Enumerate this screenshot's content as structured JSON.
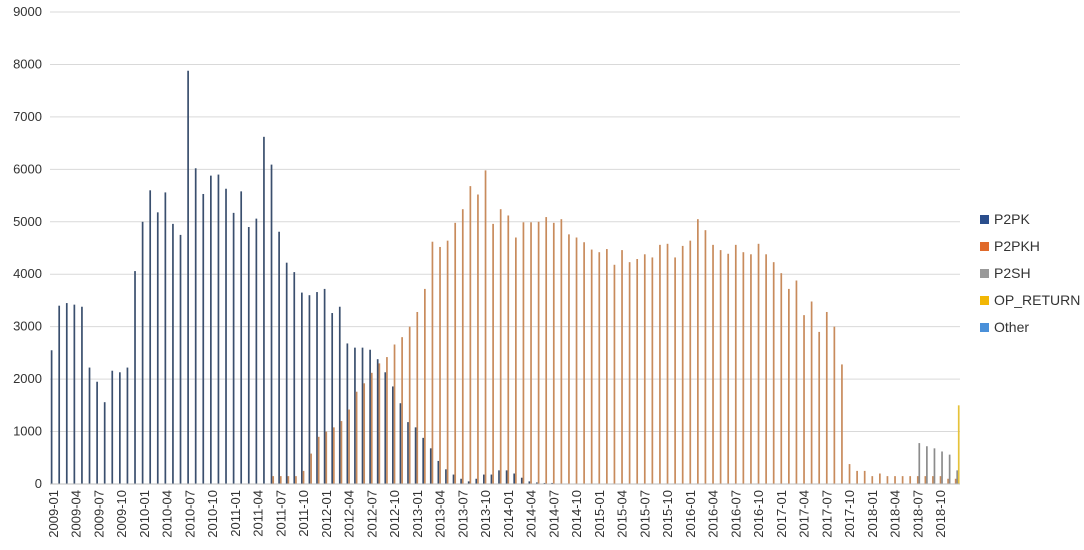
{
  "chart_data": {
    "type": "bar",
    "grid": true,
    "legend_position": "right",
    "ylim": [
      0,
      9000
    ],
    "yticks": [
      0,
      1000,
      2000,
      3000,
      4000,
      5000,
      6000,
      7000,
      8000,
      9000
    ],
    "ytick_labels": [
      "0",
      "1000",
      "2000",
      "3000",
      "4000",
      "5000",
      "6000",
      "7000",
      "8000",
      "9000"
    ],
    "xtick_labels": [
      "2009-01",
      "2009-04",
      "2009-07",
      "2009-10",
      "2010-01",
      "2010-04",
      "2010-07",
      "2010-10",
      "2011-01",
      "2011-04",
      "2011-07",
      "2011-10",
      "2012-01",
      "2012-04",
      "2012-07",
      "2012-10",
      "2013-01",
      "2013-04",
      "2013-07",
      "2013-10",
      "2014-01",
      "2014-04",
      "2014-07",
      "2014-10",
      "2015-01",
      "2015-04",
      "2015-07",
      "2015-10",
      "2016-01",
      "2016-04",
      "2016-07",
      "2016-10",
      "2017-01",
      "2017-04",
      "2017-07",
      "2017-10",
      "2018-01",
      "2018-04",
      "2018-07",
      "2018-10"
    ],
    "categories": [
      "2009-01",
      "2009-02",
      "2009-03",
      "2009-04",
      "2009-05",
      "2009-06",
      "2009-07",
      "2009-08",
      "2009-09",
      "2009-10",
      "2009-11",
      "2009-12",
      "2010-01",
      "2010-02",
      "2010-03",
      "2010-04",
      "2010-05",
      "2010-06",
      "2010-07",
      "2010-08",
      "2010-09",
      "2010-10",
      "2010-11",
      "2010-12",
      "2011-01",
      "2011-02",
      "2011-03",
      "2011-04",
      "2011-05",
      "2011-06",
      "2011-07",
      "2011-08",
      "2011-09",
      "2011-10",
      "2011-11",
      "2011-12",
      "2012-01",
      "2012-02",
      "2012-03",
      "2012-04",
      "2012-05",
      "2012-06",
      "2012-07",
      "2012-08",
      "2012-09",
      "2012-10",
      "2012-11",
      "2012-12",
      "2013-01",
      "2013-02",
      "2013-03",
      "2013-04",
      "2013-05",
      "2013-06",
      "2013-07",
      "2013-08",
      "2013-09",
      "2013-10",
      "2013-11",
      "2013-12",
      "2014-01",
      "2014-02",
      "2014-03",
      "2014-04",
      "2014-05",
      "2014-06",
      "2014-07",
      "2014-08",
      "2014-09",
      "2014-10",
      "2014-11",
      "2014-12",
      "2015-01",
      "2015-02",
      "2015-03",
      "2015-04",
      "2015-05",
      "2015-06",
      "2015-07",
      "2015-08",
      "2015-09",
      "2015-10",
      "2015-11",
      "2015-12",
      "2016-01",
      "2016-02",
      "2016-03",
      "2016-04",
      "2016-05",
      "2016-06",
      "2016-07",
      "2016-08",
      "2016-09",
      "2016-10",
      "2016-11",
      "2016-12",
      "2017-01",
      "2017-02",
      "2017-03",
      "2017-04",
      "2017-05",
      "2017-06",
      "2017-07",
      "2017-08",
      "2017-09",
      "2017-10",
      "2017-11",
      "2017-12",
      "2018-01",
      "2018-02",
      "2018-03",
      "2018-04",
      "2018-05",
      "2018-06",
      "2018-07",
      "2018-08",
      "2018-09",
      "2018-10",
      "2018-11",
      "2018-12"
    ],
    "series": [
      {
        "name": "P2PK",
        "color": "#3a4f6e",
        "values": [
          2550,
          3400,
          3450,
          3420,
          3380,
          2220,
          1950,
          1560,
          2160,
          2130,
          2220,
          4060,
          5000,
          5600,
          5180,
          5560,
          4960,
          4750,
          7880,
          6020,
          5530,
          5880,
          5900,
          5630,
          5170,
          5580,
          4900,
          5060,
          6620,
          6090,
          4810,
          4220,
          4040,
          3650,
          3600,
          3660,
          3720,
          3260,
          3380,
          2680,
          2600,
          2600,
          2560,
          2380,
          2130,
          1860,
          1540,
          1180,
          1080,
          880,
          680,
          440,
          280,
          180,
          100,
          50,
          100,
          180,
          180,
          260,
          260,
          200,
          120,
          50,
          30,
          20,
          20,
          10,
          10,
          10,
          10,
          10,
          10,
          10,
          10,
          10,
          10,
          10,
          10,
          10,
          10,
          10,
          10,
          10,
          10,
          10,
          10,
          10,
          10,
          10,
          10,
          10,
          10,
          10,
          10,
          10,
          10,
          10,
          10,
          10,
          10,
          10,
          10,
          10,
          10,
          10,
          10,
          10,
          10,
          10,
          10,
          10,
          10,
          10,
          10,
          10,
          10,
          10,
          10,
          10
        ]
      },
      {
        "name": "P2PKH",
        "color": "#c88b5c",
        "values": [
          0,
          0,
          0,
          0,
          0,
          0,
          0,
          0,
          0,
          0,
          0,
          0,
          0,
          0,
          0,
          0,
          0,
          0,
          0,
          0,
          0,
          0,
          0,
          0,
          0,
          0,
          0,
          0,
          0,
          150,
          150,
          150,
          150,
          250,
          580,
          900,
          1000,
          1080,
          1200,
          1420,
          1760,
          1920,
          2120,
          2300,
          2420,
          2660,
          2800,
          3000,
          3280,
          3720,
          4620,
          4520,
          4640,
          4980,
          5240,
          5680,
          5520,
          5980,
          4960,
          5240,
          5120,
          4700,
          4990,
          4990,
          5000,
          5090,
          4980,
          5050,
          4760,
          4700,
          4610,
          4470,
          4420,
          4480,
          4180,
          4460,
          4230,
          4290,
          4380,
          4320,
          4560,
          4580,
          4320,
          4540,
          4640,
          5050,
          4840,
          4560,
          4460,
          4390,
          4560,
          4420,
          4380,
          4580,
          4380,
          4230,
          4020,
          3720,
          3880,
          3220,
          3480,
          2900,
          3280,
          3000,
          2280,
          380,
          250,
          250,
          150,
          200,
          150,
          150,
          150,
          150,
          150,
          150,
          150,
          150,
          100,
          100
        ]
      },
      {
        "name": "P2SH",
        "color": "#8c8c8c",
        "values": [
          0,
          0,
          0,
          0,
          0,
          0,
          0,
          0,
          0,
          0,
          0,
          0,
          0,
          0,
          0,
          0,
          0,
          0,
          0,
          0,
          0,
          0,
          0,
          0,
          0,
          0,
          0,
          0,
          0,
          0,
          0,
          0,
          0,
          0,
          0,
          0,
          0,
          0,
          0,
          0,
          0,
          0,
          0,
          0,
          0,
          0,
          0,
          0,
          0,
          0,
          0,
          0,
          0,
          0,
          0,
          0,
          0,
          0,
          0,
          0,
          0,
          0,
          0,
          0,
          0,
          0,
          0,
          0,
          0,
          0,
          0,
          0,
          0,
          0,
          0,
          0,
          0,
          0,
          0,
          0,
          0,
          0,
          0,
          0,
          0,
          0,
          0,
          0,
          0,
          0,
          0,
          0,
          0,
          0,
          0,
          0,
          0,
          0,
          0,
          0,
          0,
          0,
          0,
          0,
          0,
          0,
          0,
          0,
          0,
          0,
          0,
          0,
          0,
          0,
          780,
          720,
          680,
          620,
          560,
          260
        ]
      },
      {
        "name": "OP_RETURN",
        "color": "#e6c23a",
        "values": [
          0,
          0,
          0,
          0,
          0,
          0,
          0,
          0,
          0,
          0,
          0,
          0,
          0,
          0,
          0,
          0,
          0,
          0,
          0,
          0,
          0,
          0,
          0,
          0,
          0,
          0,
          0,
          0,
          0,
          0,
          0,
          0,
          0,
          0,
          0,
          0,
          0,
          0,
          0,
          0,
          0,
          0,
          0,
          0,
          0,
          0,
          0,
          0,
          0,
          0,
          0,
          0,
          0,
          0,
          0,
          0,
          0,
          0,
          0,
          0,
          0,
          0,
          0,
          0,
          0,
          0,
          0,
          0,
          0,
          0,
          0,
          0,
          0,
          0,
          0,
          0,
          0,
          0,
          0,
          0,
          0,
          0,
          0,
          0,
          0,
          0,
          0,
          0,
          0,
          0,
          0,
          0,
          0,
          0,
          0,
          0,
          0,
          0,
          0,
          0,
          0,
          0,
          0,
          0,
          0,
          0,
          0,
          0,
          0,
          0,
          0,
          0,
          0,
          0,
          0,
          0,
          0,
          0,
          0,
          1500
        ]
      },
      {
        "name": "Other",
        "color": "#4a90d9",
        "values": [
          0,
          0,
          0,
          0,
          0,
          0,
          0,
          0,
          0,
          0,
          0,
          0,
          0,
          0,
          0,
          0,
          0,
          0,
          0,
          0,
          0,
          0,
          0,
          0,
          0,
          0,
          0,
          0,
          0,
          0,
          0,
          0,
          0,
          0,
          0,
          0,
          0,
          0,
          0,
          0,
          0,
          0,
          0,
          0,
          0,
          0,
          0,
          0,
          0,
          0,
          0,
          0,
          0,
          0,
          0,
          0,
          0,
          0,
          0,
          0,
          0,
          0,
          0,
          0,
          0,
          0,
          0,
          0,
          0,
          0,
          0,
          0,
          0,
          0,
          0,
          0,
          0,
          0,
          0,
          0,
          0,
          0,
          0,
          0,
          0,
          0,
          0,
          0,
          0,
          0,
          0,
          0,
          0,
          0,
          0,
          0,
          0,
          0,
          0,
          0,
          0,
          0,
          0,
          0,
          0,
          0,
          0,
          0,
          0,
          0,
          0,
          0,
          0,
          0,
          0,
          0,
          0,
          0,
          0,
          0
        ]
      }
    ],
    "legend": [
      {
        "label": "P2PK",
        "color": "#2b4e8c"
      },
      {
        "label": "P2PKH",
        "color": "#e06a2b"
      },
      {
        "label": "P2SH",
        "color": "#999999"
      },
      {
        "label": "OP_RETURN",
        "color": "#f2b705"
      },
      {
        "label": "Other",
        "color": "#4a90d9"
      }
    ]
  }
}
